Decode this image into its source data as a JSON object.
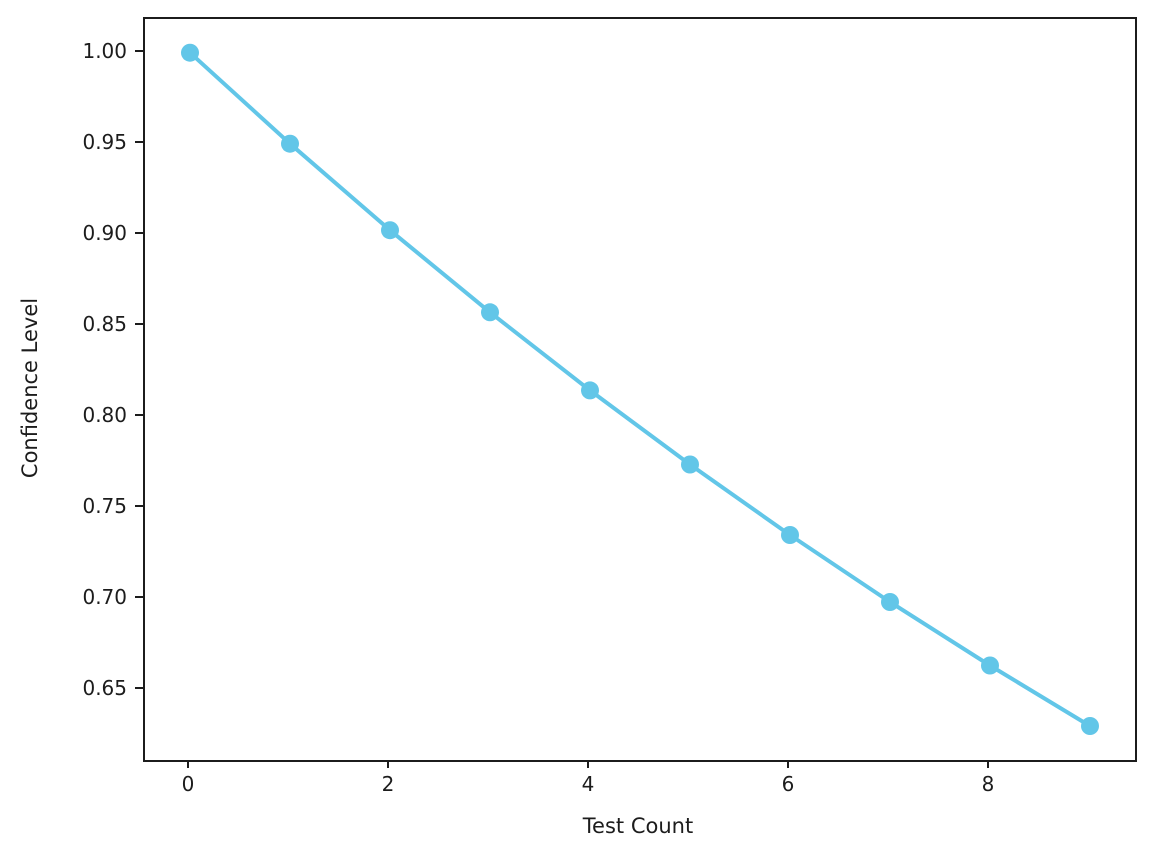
{
  "chart_data": {
    "type": "line",
    "title": "",
    "xlabel": "Test Count",
    "ylabel": "Confidence Level",
    "x": [
      0,
      1,
      2,
      3,
      4,
      5,
      6,
      7,
      8,
      9
    ],
    "series": [
      {
        "name": "Confidence Level",
        "values": [
          1.0,
          0.95,
          0.9025,
          0.8574,
          0.8145,
          0.7738,
          0.7351,
          0.6983,
          0.6634,
          0.6302
        ]
      }
    ],
    "xlim": [
      -0.45,
      9.45
    ],
    "ylim": [
      0.6115,
      1.0185
    ],
    "x_ticks": {
      "values": [
        0,
        2,
        4,
        6,
        8
      ],
      "labels": [
        "0",
        "2",
        "4",
        "6",
        "8"
      ]
    },
    "y_ticks": {
      "values": [
        1.0,
        0.95,
        0.9,
        0.85,
        0.8,
        0.75,
        0.7,
        0.65
      ],
      "labels": [
        "1.00",
        "0.95",
        "0.90",
        "0.85",
        "0.80",
        "0.75",
        "0.70",
        "0.65"
      ]
    },
    "line_color": "#62C6E8",
    "marker": "circle",
    "marker_radius": 9,
    "line_width": 4,
    "grid": false,
    "legend_position": "none"
  }
}
